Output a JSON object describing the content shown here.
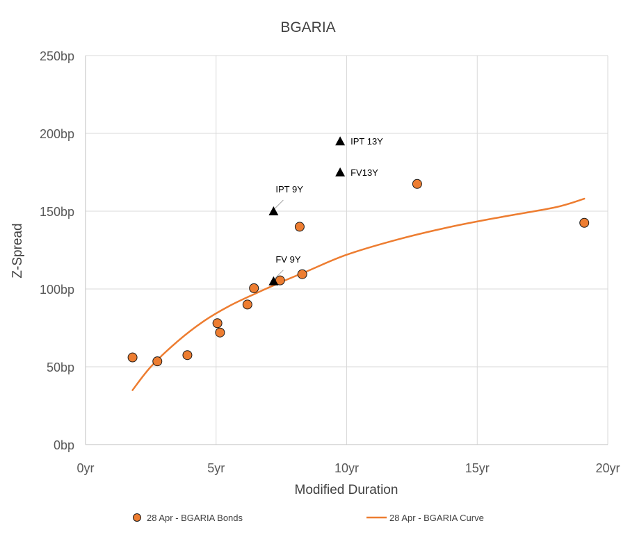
{
  "chart_data": {
    "type": "scatter",
    "title": "BGARIA",
    "xlabel": "Modified Duration",
    "ylabel": "Z-Spread",
    "xlim": [
      0,
      20
    ],
    "ylim": [
      0,
      250
    ],
    "grid": true,
    "x_ticks": [
      {
        "value": 0,
        "label": "0yr"
      },
      {
        "value": 5,
        "label": "5yr"
      },
      {
        "value": 10,
        "label": "10yr"
      },
      {
        "value": 15,
        "label": "15yr"
      },
      {
        "value": 20,
        "label": "20yr"
      }
    ],
    "y_ticks": [
      {
        "value": 0,
        "label": "0bp"
      },
      {
        "value": 50,
        "label": "50bp"
      },
      {
        "value": 100,
        "label": "100bp"
      },
      {
        "value": 150,
        "label": "150bp"
      },
      {
        "value": 200,
        "label": "200bp"
      },
      {
        "value": 250,
        "label": "250bp"
      }
    ],
    "series": [
      {
        "name": "28 Apr - BGARIA Bonds",
        "kind": "scatter",
        "color": "#ED7D31",
        "points": [
          [
            1.8,
            56
          ],
          [
            2.75,
            53.5
          ],
          [
            3.9,
            57.5
          ],
          [
            5.05,
            78
          ],
          [
            5.15,
            72
          ],
          [
            6.2,
            90
          ],
          [
            6.45,
            100.5
          ],
          [
            7.45,
            105.5
          ],
          [
            8.2,
            140
          ],
          [
            8.3,
            109.5
          ],
          [
            12.7,
            167.5
          ],
          [
            19.1,
            142.5
          ]
        ]
      },
      {
        "name": "28 Apr - BGARIA Curve",
        "kind": "line",
        "color": "#ED7D31",
        "points": [
          [
            1.8,
            35
          ],
          [
            2.5,
            50
          ],
          [
            3.5,
            66
          ],
          [
            4.5,
            79
          ],
          [
            5.5,
            89
          ],
          [
            6.5,
            97
          ],
          [
            7.5,
            104.5
          ],
          [
            8.5,
            111.5
          ],
          [
            10,
            122
          ],
          [
            12,
            132
          ],
          [
            14,
            140
          ],
          [
            16,
            146.5
          ],
          [
            18,
            152.5
          ],
          [
            19.1,
            158
          ]
        ]
      }
    ],
    "annotations": [
      {
        "label": "IPT 13Y",
        "x": 9.75,
        "y": 195,
        "leader": false
      },
      {
        "label": "FV13Y",
        "x": 9.75,
        "y": 175,
        "leader": false
      },
      {
        "label": "IPT 9Y",
        "x": 7.2,
        "y": 150,
        "leader": true
      },
      {
        "label": "FV 9Y",
        "x": 7.2,
        "y": 105,
        "leader": true
      }
    ],
    "legend": {
      "placement": "bottom",
      "items": [
        "28 Apr - BGARIA Bonds",
        "28 Apr - BGARIA Curve"
      ]
    }
  }
}
